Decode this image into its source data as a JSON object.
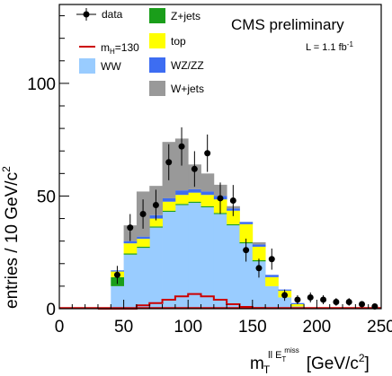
{
  "chart_data": {
    "type": "bar",
    "stacked": true,
    "x_label": {
      "main": "m",
      "sub": "T",
      "sup_ll": "ll",
      "sup_e": "E",
      "sup_e_sub": "T",
      "sup_e_sup": "miss",
      "unit": "[GeV/c",
      "unit_sup": "2",
      "unit_end": "]"
    },
    "y_label": {
      "main": "entries / 10 GeV/c",
      "sup": "2"
    },
    "xlim": [
      0,
      250
    ],
    "ylim": [
      0,
      135
    ],
    "x_ticks": [
      "0",
      "50",
      "100",
      "150",
      "200",
      "250"
    ],
    "x_tick_values": [
      0,
      50,
      100,
      150,
      200,
      250
    ],
    "y_ticks": [
      "0",
      "50",
      "100"
    ],
    "y_tick_values": [
      0,
      50,
      100
    ],
    "bin_edges": [
      40,
      50,
      60,
      70,
      80,
      90,
      100,
      110,
      120,
      130,
      140,
      150,
      160,
      170,
      180,
      190
    ],
    "stack_order": [
      "ww",
      "zjets",
      "top",
      "wzzz",
      "wjets"
    ],
    "series": [
      {
        "key": "ww",
        "color": "#99ccff",
        "values": [
          10,
          24,
          27,
          36,
          43,
          46,
          47,
          45,
          42,
          37,
          29,
          21,
          10,
          5,
          1
        ]
      },
      {
        "key": "zjets",
        "color": "#1a9e1a",
        "values": [
          4,
          0.5,
          0.5,
          0.5,
          0.5,
          0.5,
          0.5,
          0.5,
          0.5,
          0.5,
          0.5,
          0.5,
          0,
          0,
          0
        ]
      },
      {
        "key": "top",
        "color": "#ffff00",
        "values": [
          2.5,
          4.5,
          3.5,
          3.5,
          4,
          4,
          4,
          5,
          6,
          6,
          8,
          6,
          4,
          3,
          1
        ]
      },
      {
        "key": "wzzz",
        "color": "#3d6df2",
        "values": [
          0.5,
          1,
          1,
          1.5,
          1.5,
          2,
          1.5,
          1.5,
          1.5,
          1,
          1,
          1,
          1,
          0.5,
          0.5
        ]
      },
      {
        "key": "wjets",
        "color": "#999999",
        "values": [
          0,
          7,
          20,
          13,
          25,
          23,
          11,
          8,
          5,
          1,
          0,
          1,
          0,
          0,
          0
        ]
      }
    ],
    "higgs": {
      "color": "#cc0000",
      "x": [
        30,
        50,
        60,
        70,
        80,
        90,
        100,
        110,
        120,
        130,
        140,
        150,
        160
      ],
      "values": [
        0,
        0,
        1.5,
        2.5,
        4,
        5.5,
        6.5,
        5.5,
        4,
        2,
        0.8,
        0.3,
        0
      ]
    },
    "data_points": {
      "color": "#000000",
      "x": [
        45,
        55,
        65,
        75,
        85,
        95,
        105,
        115,
        125,
        135,
        145,
        155,
        165,
        175,
        185,
        195,
        205,
        215,
        225,
        235,
        245
      ],
      "y": [
        15,
        36,
        42,
        46,
        65,
        72,
        62,
        69,
        49,
        48,
        26,
        18,
        22,
        6,
        4,
        5,
        4,
        3,
        3,
        2,
        1
      ],
      "err": [
        4,
        6,
        6.5,
        6.8,
        8,
        8.5,
        7.9,
        8.3,
        7,
        6.9,
        5.1,
        4.2,
        4.7,
        2.5,
        2,
        2.2,
        2,
        1.7,
        1.7,
        1.4,
        1
      ]
    },
    "legend": {
      "position": "top",
      "entries": [
        {
          "key": "data",
          "label": "data",
          "style": "marker"
        },
        {
          "key": "higgs",
          "label_main": "m",
          "label_sub": "H",
          "label_rest": "=130",
          "style": "line"
        },
        {
          "key": "ww",
          "label": "WW",
          "style": "box",
          "color": "#99ccff"
        },
        {
          "key": "zjets",
          "label": "Z+jets",
          "style": "box",
          "color": "#1a9e1a"
        },
        {
          "key": "top",
          "label": "top",
          "style": "box",
          "color": "#ffff00"
        },
        {
          "key": "wzzz",
          "label": "WZ/ZZ",
          "style": "box",
          "color": "#3d6df2"
        },
        {
          "key": "wjets",
          "label": "W+jets",
          "style": "box",
          "color": "#999999"
        }
      ]
    },
    "annotations": {
      "experiment": "CMS preliminary",
      "lumi_main": "L = 1.1 fb",
      "lumi_sup": "-1"
    }
  }
}
